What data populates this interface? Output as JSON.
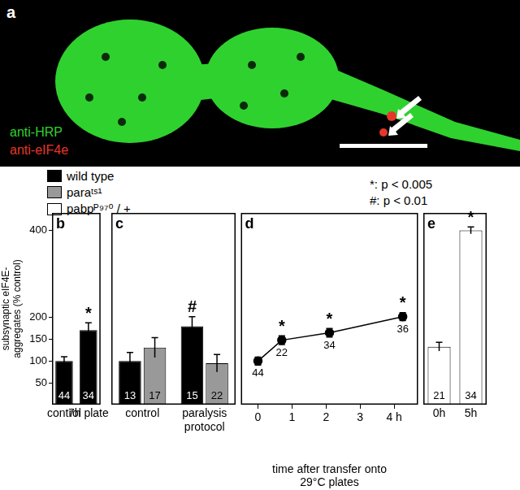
{
  "panel_a": {
    "label": "a",
    "channels": [
      {
        "name": "anti-HRP",
        "color": "#2fd12f"
      },
      {
        "name": "anti-eIF4e",
        "color": "#e8352b"
      }
    ]
  },
  "significance": [
    "*: p < 0.005",
    "#: p < 0.01"
  ],
  "chart_data": [
    {
      "panel": "b",
      "type": "bar",
      "y_label": [
        "subsynaptic eIF4E-",
        "aggregates (% control)"
      ],
      "categories": [
        "control",
        "7h plate"
      ],
      "series": [
        {
          "name": "wild type",
          "color": "#000000",
          "values": [
            100,
            171
          ],
          "errors": [
            10,
            17
          ],
          "n": [
            44,
            34
          ],
          "marks": [
            null,
            "*"
          ]
        }
      ],
      "ylim": [
        0,
        440
      ],
      "yticks": [
        50,
        100,
        150,
        200,
        400
      ],
      "grid": false
    },
    {
      "panel": "c",
      "type": "bar",
      "categories": [
        "control",
        "paralysis protocol"
      ],
      "series": [
        {
          "name": "wild type",
          "color": "#000000",
          "values": [
            100,
            180
          ],
          "errors": [
            20,
            22
          ],
          "n": [
            13,
            15
          ],
          "marks": [
            null,
            "#"
          ]
        },
        {
          "name": "paraᵗˢ¹",
          "color": "#999999",
          "values": [
            131,
            95
          ],
          "errors": [
            23,
            20
          ],
          "n": [
            17,
            22
          ],
          "marks": [
            null,
            null
          ]
        }
      ],
      "ylim": [
        0,
        440
      ],
      "grid": false,
      "tick_labels": "x"
    },
    {
      "panel": "d",
      "type": "line",
      "x_label": [
        "time after transfer onto",
        "29°C plates"
      ],
      "x": [
        0,
        0.7,
        2.1,
        4.25
      ],
      "series": [
        {
          "name": "wild type",
          "color": "#000000",
          "marker": "circle",
          "values": [
            100,
            148,
            165,
            202
          ],
          "errors": [
            9,
            10,
            10,
            9
          ],
          "n": [
            44,
            22,
            34,
            36
          ],
          "marks": [
            null,
            "*",
            "*",
            "*"
          ]
        }
      ],
      "xlim": [
        -0.5,
        4.7
      ],
      "xticks": [
        0,
        1,
        2,
        3,
        {
          "value": 4,
          "label": "4 h"
        }
      ],
      "ylim": [
        0,
        440
      ],
      "grid": false,
      "tick_labels": "x"
    },
    {
      "panel": "e",
      "type": "bar",
      "categories": [
        "0h",
        "5h"
      ],
      "series": [
        {
          "name": "pabpᴾ⁹⁷⁰ / +",
          "color": "#ffffff",
          "values": [
            133,
            400
          ],
          "errors": [
            10,
            8
          ],
          "n": [
            21,
            34
          ],
          "marks": [
            null,
            "*"
          ]
        }
      ],
      "ylim": [
        0,
        440
      ],
      "grid": false,
      "tick_labels": "x"
    }
  ]
}
